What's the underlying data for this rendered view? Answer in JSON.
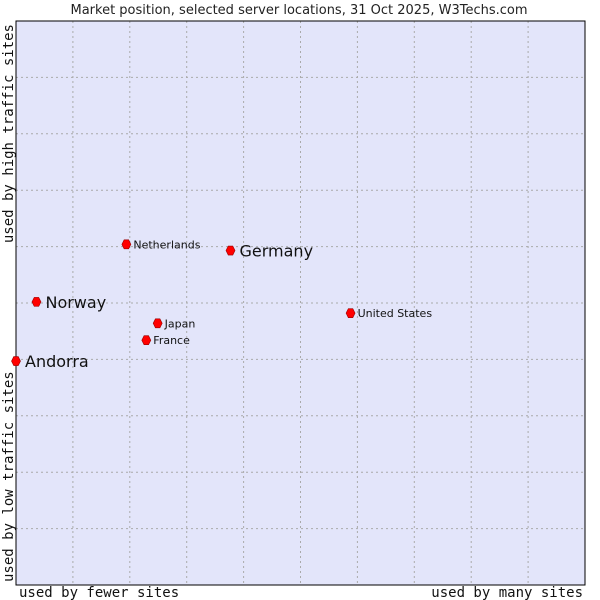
{
  "chart_data": {
    "type": "scatter",
    "title": "Market position, selected server locations, 31 Oct 2025, W3Techs.com",
    "xlabel_left": "used by fewer sites",
    "xlabel_right": "used by many sites",
    "ylabel_bottom": "used by low traffic sites",
    "ylabel_top": "used by high traffic sites",
    "xlim": [
      0,
      10
    ],
    "ylim": [
      0,
      10
    ],
    "grid": true,
    "points": [
      {
        "name": "Netherlands",
        "x": 1.94,
        "y": 6.04,
        "size": "small"
      },
      {
        "name": "Germany",
        "x": 3.77,
        "y": 5.93,
        "size": "large"
      },
      {
        "name": "Norway",
        "x": 0.36,
        "y": 5.02,
        "size": "large"
      },
      {
        "name": "United States",
        "x": 5.88,
        "y": 4.82,
        "size": "small"
      },
      {
        "name": "Japan",
        "x": 2.49,
        "y": 4.64,
        "size": "small"
      },
      {
        "name": "France",
        "x": 2.29,
        "y": 4.34,
        "size": "small"
      },
      {
        "name": "Andorra",
        "x": 0.0,
        "y": 3.97,
        "size": "large"
      }
    ],
    "colors": {
      "background": "#e3e5fa",
      "grid": "#aaaaaa",
      "marker": "#ff0000",
      "border": "#000000"
    }
  }
}
